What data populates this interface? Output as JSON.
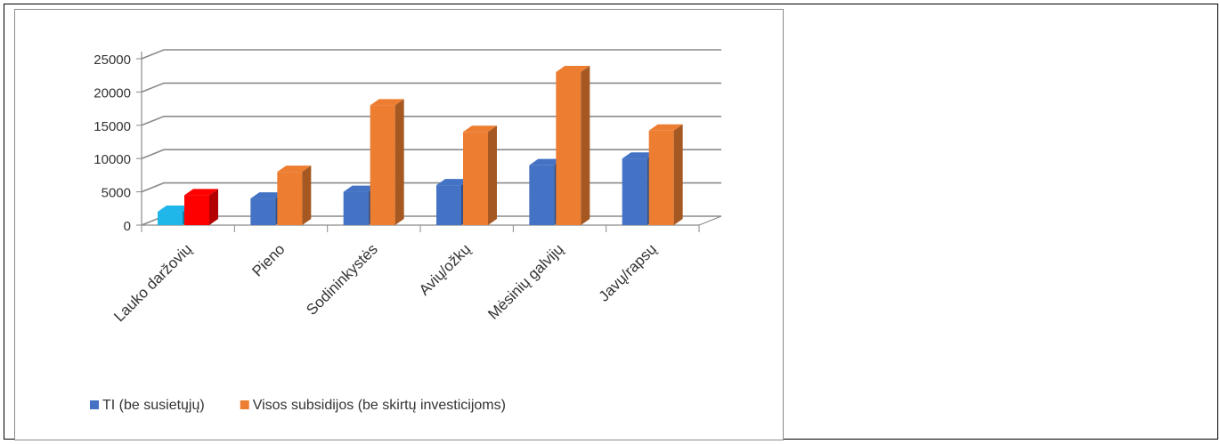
{
  "chart_data": {
    "type": "bar",
    "categories": [
      "Lauko daržovių",
      "Pieno",
      "Sodininkystės",
      "Avių/ožkų",
      "Mėsinių galvijų",
      "Javų/rapsų"
    ],
    "series": [
      {
        "name": "TI (be susietųjų)",
        "color": "#4472c4",
        "values": [
          2000,
          4000,
          5000,
          6000,
          9000,
          10000
        ]
      },
      {
        "name": "Visos subsidijos (be skirtų investicijoms)",
        "color": "#ed7d31",
        "values": [
          4500,
          8000,
          18000,
          14000,
          23000,
          14200
        ]
      }
    ],
    "highlight_colors": {
      "Lauko daržovių": [
        "#1fb6ea",
        "#ff0000"
      ]
    },
    "yticks": [
      "25000",
      "20000",
      "15000",
      "10000",
      "5000",
      "0"
    ],
    "ylim": [
      0,
      25000
    ],
    "grid": true,
    "legend_position": "bottom",
    "style": "3d-clustered-column"
  }
}
